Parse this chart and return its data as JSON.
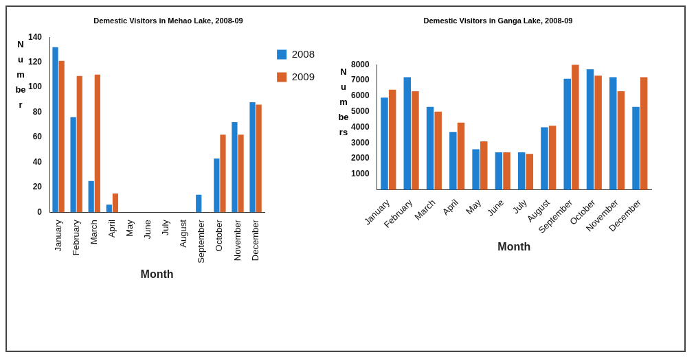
{
  "chart_data": [
    {
      "type": "bar",
      "title": "Demestic Visitors in Mehao Lake, 2008-09",
      "xlabel": "Month",
      "ylabel": "Number",
      "categories": [
        "January",
        "February",
        "March",
        "April",
        "May",
        "June",
        "July",
        "August",
        "September",
        "October",
        "November",
        "December"
      ],
      "series": [
        {
          "name": "2008",
          "color": "#1f7fd0",
          "values": [
            132,
            76,
            25,
            6,
            0,
            0,
            0,
            0,
            14,
            43,
            72,
            88
          ]
        },
        {
          "name": "2009",
          "color": "#d9622b",
          "values": [
            121,
            109,
            110,
            15,
            0,
            0,
            0,
            0,
            0,
            62,
            62,
            86
          ]
        }
      ],
      "ylim": [
        0,
        140
      ],
      "yticks": [
        0,
        20,
        40,
        60,
        80,
        100,
        120,
        140
      ],
      "grid": false,
      "legend": "top right"
    },
    {
      "type": "bar",
      "title": "Demestic Visitors in Ganga Lake, 2008-09",
      "xlabel": "Month",
      "ylabel": "Numbers",
      "categories": [
        "January",
        "February",
        "March",
        "April",
        "May",
        "June",
        "July",
        "August",
        "September",
        "October",
        "November",
        "December"
      ],
      "series": [
        {
          "color": "#1f7fd0",
          "values": [
            5900,
            7200,
            5300,
            3700,
            2600,
            2400,
            2400,
            4000,
            7100,
            7700,
            7200,
            5300
          ]
        },
        {
          "color": "#d9622b",
          "values": [
            6400,
            6300,
            5000,
            4300,
            3100,
            2400,
            2300,
            4100,
            8000,
            7300,
            6300,
            7200
          ]
        }
      ],
      "ylim": [
        0,
        8000
      ],
      "yticks": [
        1000,
        2000,
        3000,
        4000,
        5000,
        6000,
        7000,
        8000
      ],
      "grid": false
    }
  ]
}
